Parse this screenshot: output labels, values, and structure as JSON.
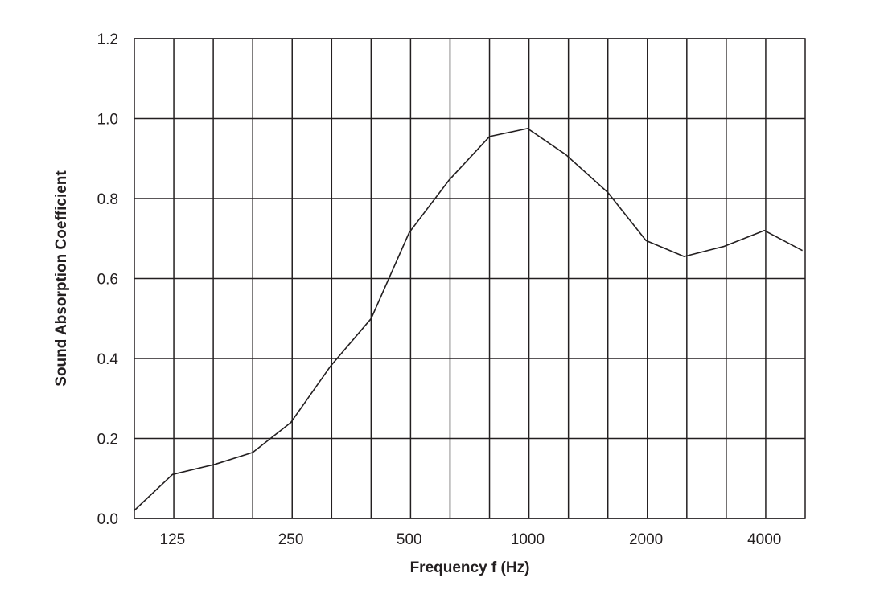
{
  "chart_data": {
    "type": "line",
    "title": "",
    "xlabel": "Frequency f (Hz)",
    "ylabel": "Sound Absorption Coefficient",
    "x_scale": "log2 (one-third octave)",
    "x_tick_labels": [
      "125",
      "250",
      "500",
      "1000",
      "2000",
      "4000"
    ],
    "x_tick_values": [
      125,
      250,
      500,
      1000,
      2000,
      4000
    ],
    "x_band_count": 17,
    "xlim": [
      100,
      5000
    ],
    "y_ticks": [
      0.0,
      0.2,
      0.4,
      0.6,
      0.8,
      1.0,
      1.2
    ],
    "y_tick_labels": [
      "0.0",
      "0.2",
      "0.4",
      "0.6",
      "0.8",
      "1.0",
      "1.2"
    ],
    "ylim": [
      0.0,
      1.2
    ],
    "grid": true,
    "legend": "none",
    "series": [
      {
        "x": [
          100,
          125,
          160,
          200,
          250,
          315,
          400,
          500,
          630,
          800,
          1000,
          1250,
          1600,
          2000,
          2500,
          3150,
          4000,
          5000
        ],
        "y": [
          0.02,
          0.11,
          0.135,
          0.165,
          0.24,
          0.38,
          0.5,
          0.715,
          0.845,
          0.955,
          0.975,
          0.91,
          0.815,
          0.695,
          0.655,
          0.68,
          0.72,
          0.67
        ]
      }
    ]
  }
}
